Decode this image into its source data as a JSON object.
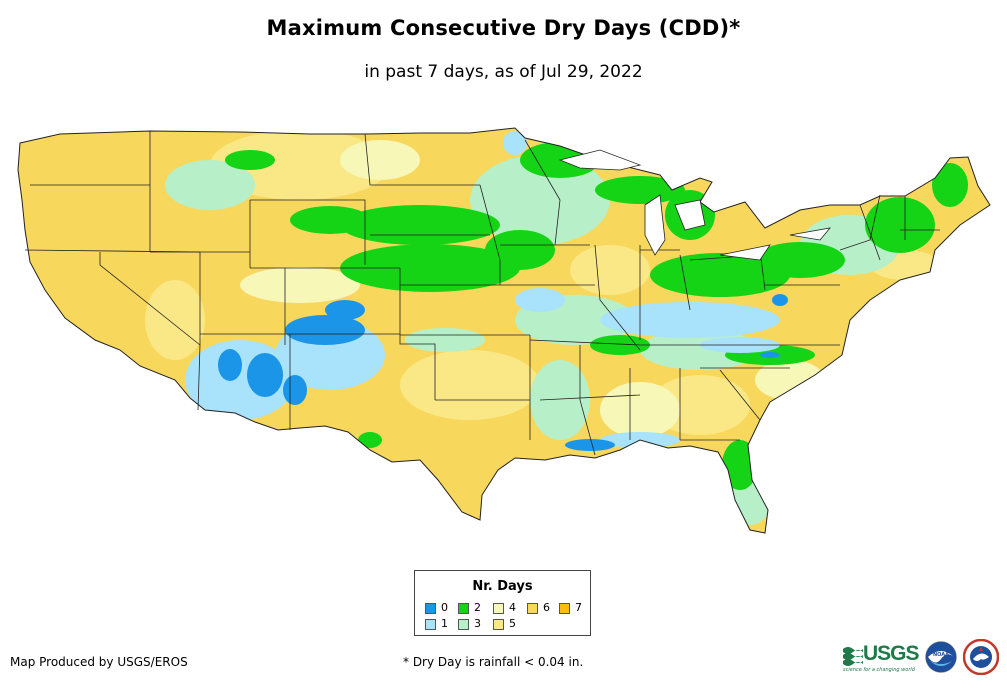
{
  "title": "Maximum Consecutive Dry Days (CDD)*",
  "subtitle": "in past 7 days, as of Jul 29, 2022",
  "colors": {
    "d0": "#1a95e8",
    "d1": "#a9e2fb",
    "d2": "#15d315",
    "d3": "#b7f0c8",
    "d4": "#f7f7b8",
    "d5": "#fae785",
    "d6": "#f8d75d",
    "d7": "#fcbc10",
    "border": "#222222",
    "usgs": "#1f7a4a"
  },
  "legend": {
    "title": "Nr. Days",
    "items": [
      {
        "label": "0",
        "color": "#1a95e8"
      },
      {
        "label": "1",
        "color": "#a9e2fb"
      },
      {
        "label": "2",
        "color": "#15d315"
      },
      {
        "label": "3",
        "color": "#b7f0c8"
      },
      {
        "label": "4",
        "color": "#f7f7b8"
      },
      {
        "label": "5",
        "color": "#fae785"
      },
      {
        "label": "6",
        "color": "#f8d75d"
      },
      {
        "label": "7",
        "color": "#fcbc10"
      }
    ]
  },
  "footer": {
    "producer": "Map Produced by USGS/EROS",
    "note": "* Dry Day is rainfall < 0.04 in."
  },
  "logos": {
    "usgs_word": "USGS",
    "usgs_tagline": "science for a changing world",
    "noaa_word": "NOAA"
  },
  "icons": [
    "usgs-logo-icon",
    "noaa-logo-icon",
    "nws-logo-icon"
  ]
}
